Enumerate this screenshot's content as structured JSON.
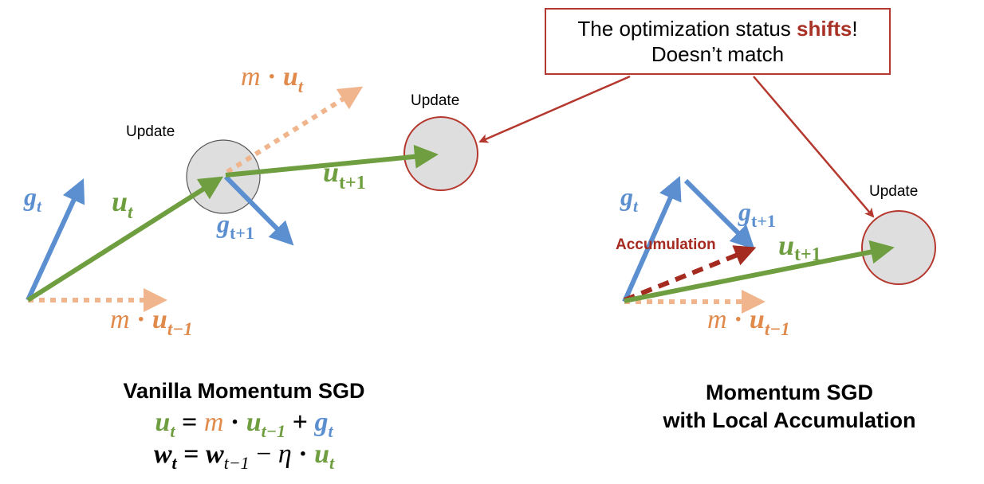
{
  "callout": {
    "line1_prefix": "The optimization status ",
    "line1_emphasis": "shifts",
    "line1_suffix": "!",
    "line2": "Doesn’t match"
  },
  "labels": {
    "update_left": "Update",
    "update_middle": "Update",
    "update_right": "Update",
    "accumulation": "Accumulation"
  },
  "math": {
    "g": "g",
    "u": "u",
    "m": "m",
    "dot": "·",
    "t": "t",
    "t_plus_1": "t+1",
    "t_minus_1": "t−1",
    "equals": "=",
    "plus": "+",
    "minus": "−",
    "w": "w",
    "eta": "η"
  },
  "captions": {
    "left_title": "Vanilla Momentum SGD",
    "right_title_line1": "Momentum SGD",
    "right_title_line2": "with Local Accumulation"
  },
  "colors": {
    "blue": "#5b8fd0",
    "green": "#6e9e3f",
    "orange": "#e08a4c",
    "orange_light": "#f0b58d",
    "red": "#a52a1f",
    "circle_fill": "#dedede"
  }
}
